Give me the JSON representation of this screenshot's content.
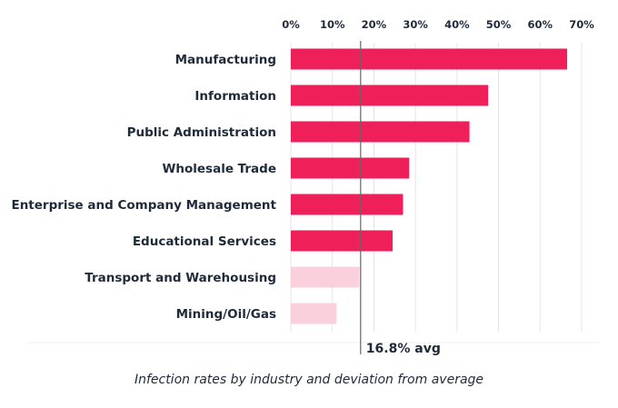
{
  "chart_data": {
    "type": "bar",
    "orientation": "horizontal",
    "categories": [
      "Manufacturing",
      "Information",
      "Public Administration",
      "Wholesale Trade",
      "Enterprise and Company Management",
      "Educational Services",
      "Transport and Warehousing",
      "Mining/Oil/Gas"
    ],
    "values": [
      66.5,
      47.5,
      43,
      28.5,
      27,
      24.5,
      16.5,
      11
    ],
    "xlim": [
      0,
      70
    ],
    "x_ticks": [
      0,
      10,
      20,
      30,
      40,
      50,
      60,
      70
    ],
    "x_tick_labels": [
      "0%",
      "10%",
      "20%",
      "30%",
      "40%",
      "50%",
      "60%",
      "70%"
    ],
    "x_axis_position": "top",
    "grid": true,
    "average": {
      "value": 16.8,
      "label": "16.8% avg"
    },
    "caption": "Infection rates by industry and deviation from average",
    "colors": {
      "above_average": "#ef1f5a",
      "below_average": "#fad0dc",
      "grid": "#e4e4e4",
      "text": "#1f2a3a",
      "average_line": "#666666"
    }
  }
}
